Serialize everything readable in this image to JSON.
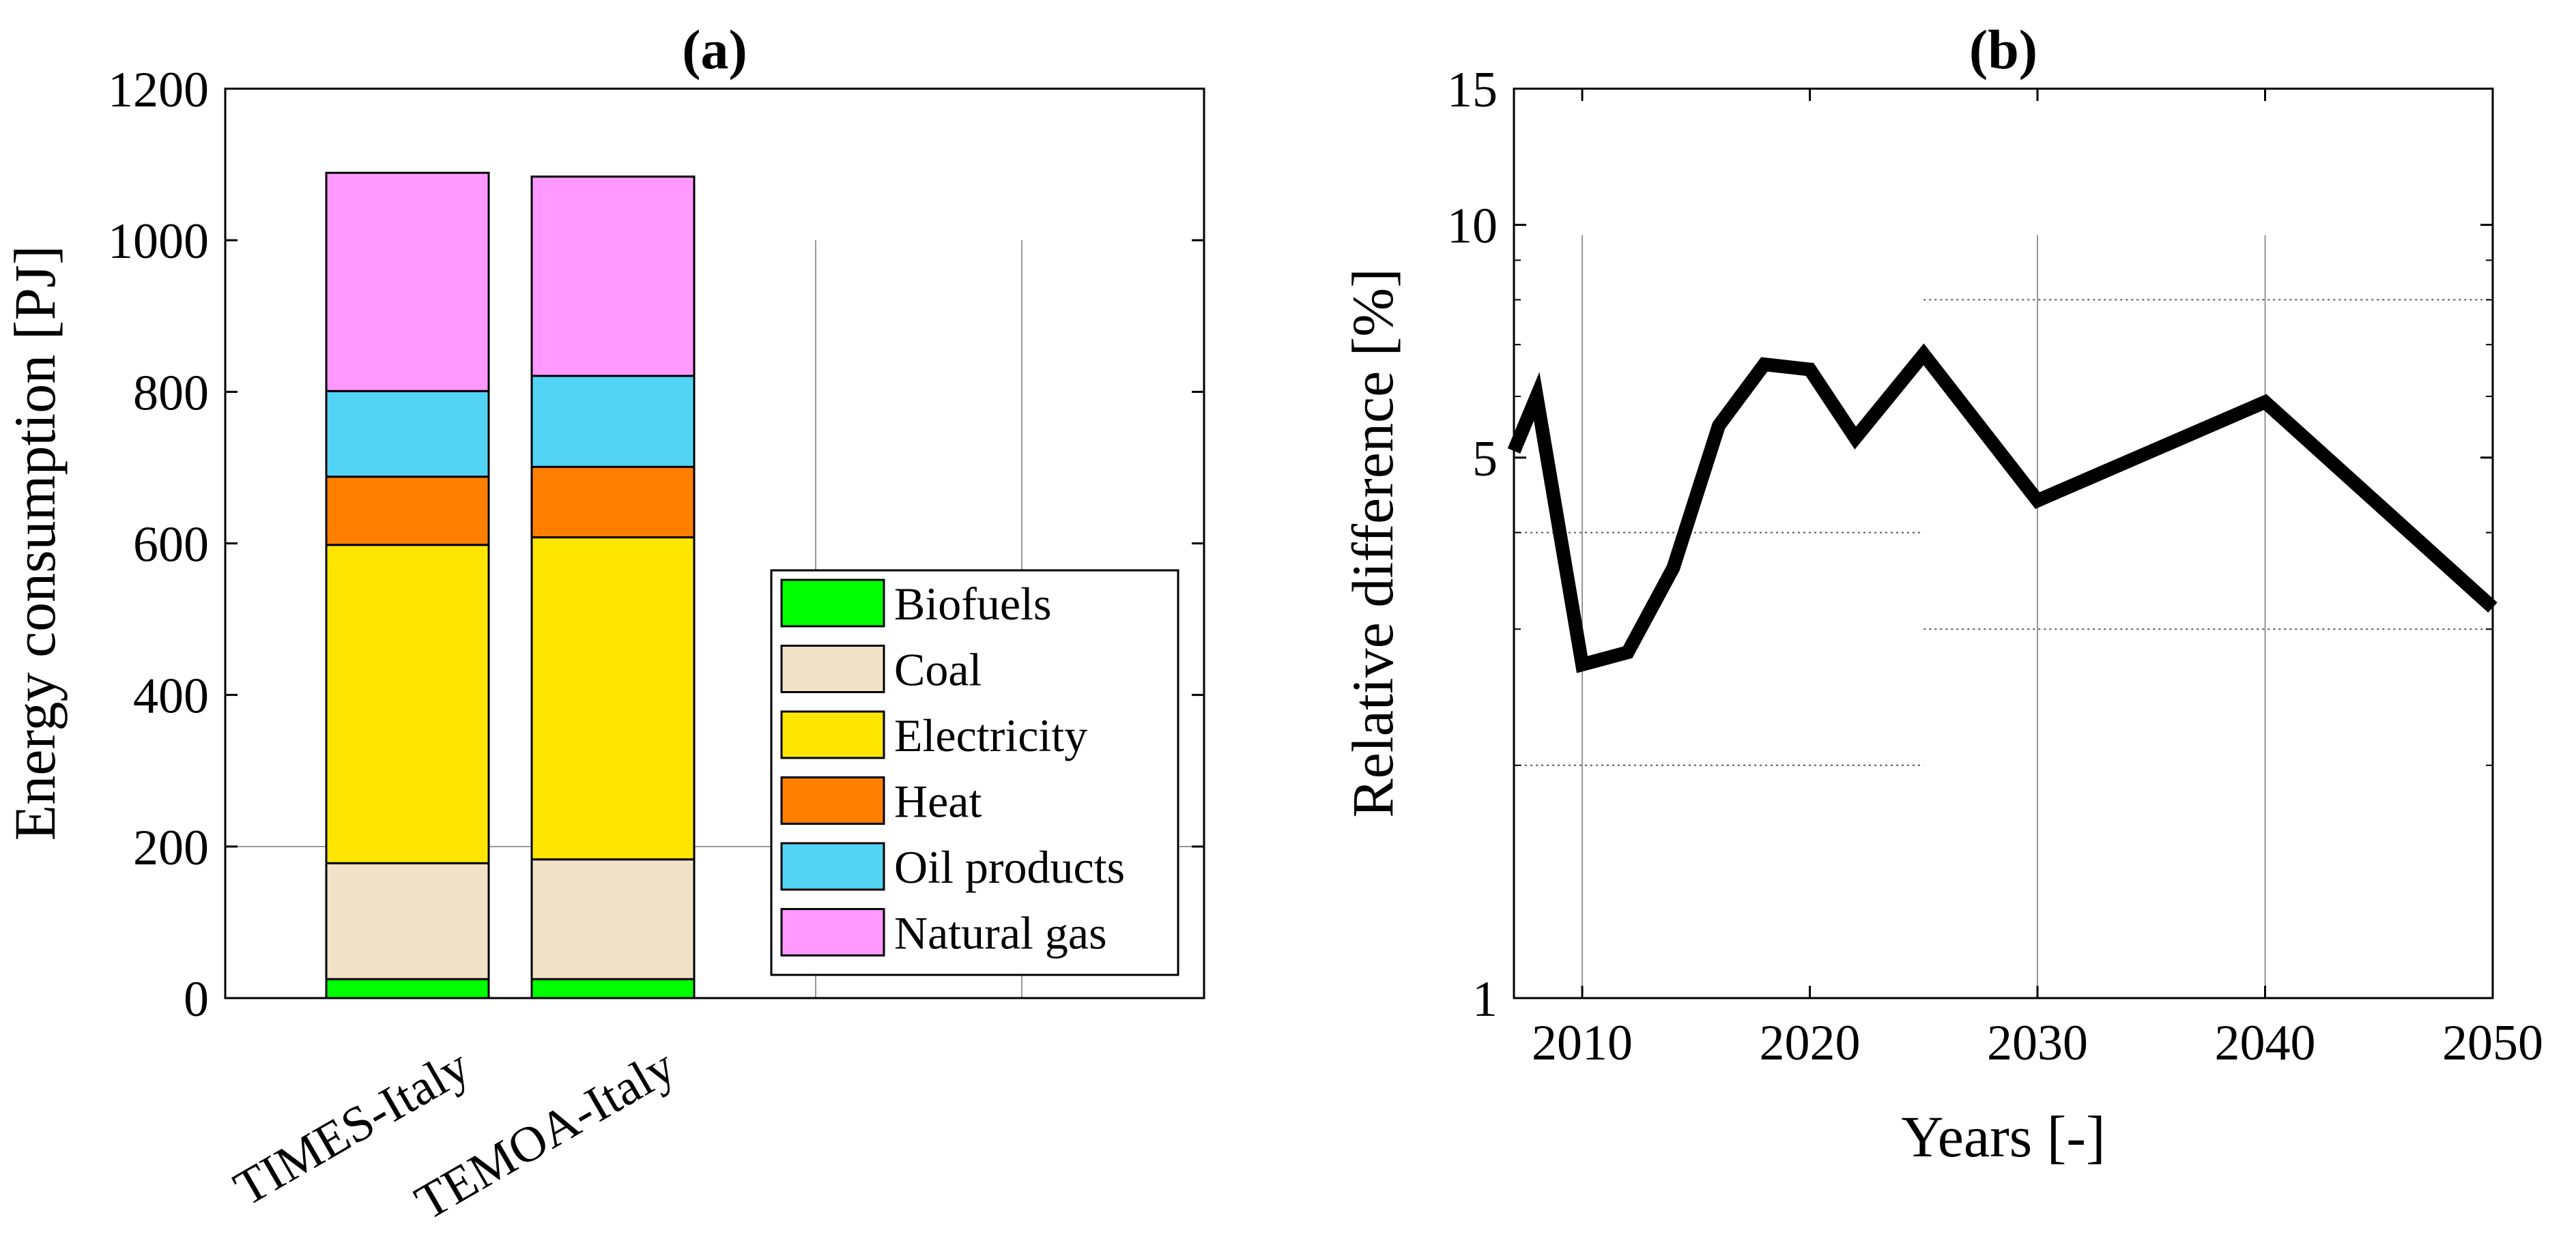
{
  "chart_data": [
    {
      "panel": "a",
      "type": "bar",
      "stacked": true,
      "title": "(a)",
      "xlabel": "",
      "ylabel": "Energy consumption [PJ]",
      "ylim": [
        0,
        1200
      ],
      "yticks": [
        0,
        200,
        400,
        600,
        800,
        1000,
        1200
      ],
      "categories": [
        "TIMES-Italy",
        "TEMOA-Italy"
      ],
      "legend_position": "lower-right",
      "series": [
        {
          "name": "Biofuels",
          "color": "#00ff00",
          "values": [
            25,
            25
          ]
        },
        {
          "name": "Coal",
          "color": "#f2e2c8",
          "values": [
            153,
            158
          ]
        },
        {
          "name": "Electricity",
          "color": "#ffe600",
          "values": [
            420,
            425
          ]
        },
        {
          "name": "Heat",
          "color": "#ff8000",
          "values": [
            90,
            93
          ]
        },
        {
          "name": "Oil products",
          "color": "#54d4f5",
          "values": [
            113,
            120
          ]
        },
        {
          "name": "Natural gas",
          "color": "#ff99ff",
          "values": [
            288,
            263
          ]
        }
      ]
    },
    {
      "panel": "b",
      "type": "line",
      "title": "(b)",
      "xlabel": "Years [-]",
      "ylabel": "Relative difference [%]",
      "yscale": "log",
      "ylim": [
        1,
        15
      ],
      "xlim": [
        2007,
        2050
      ],
      "yticks": [
        1,
        5,
        10,
        15
      ],
      "xticks": [
        2010,
        2020,
        2030,
        2040,
        2050
      ],
      "series": [
        {
          "name": "Relative difference",
          "color": "#000000",
          "x": [
            2007,
            2008,
            2010,
            2012,
            2014,
            2016,
            2018,
            2020,
            2022,
            2025,
            2030,
            2040,
            2050
          ],
          "y": [
            5.1,
            6.0,
            2.7,
            2.8,
            3.6,
            5.5,
            6.6,
            6.5,
            5.3,
            6.8,
            4.4,
            5.9,
            3.2
          ]
        }
      ]
    }
  ]
}
